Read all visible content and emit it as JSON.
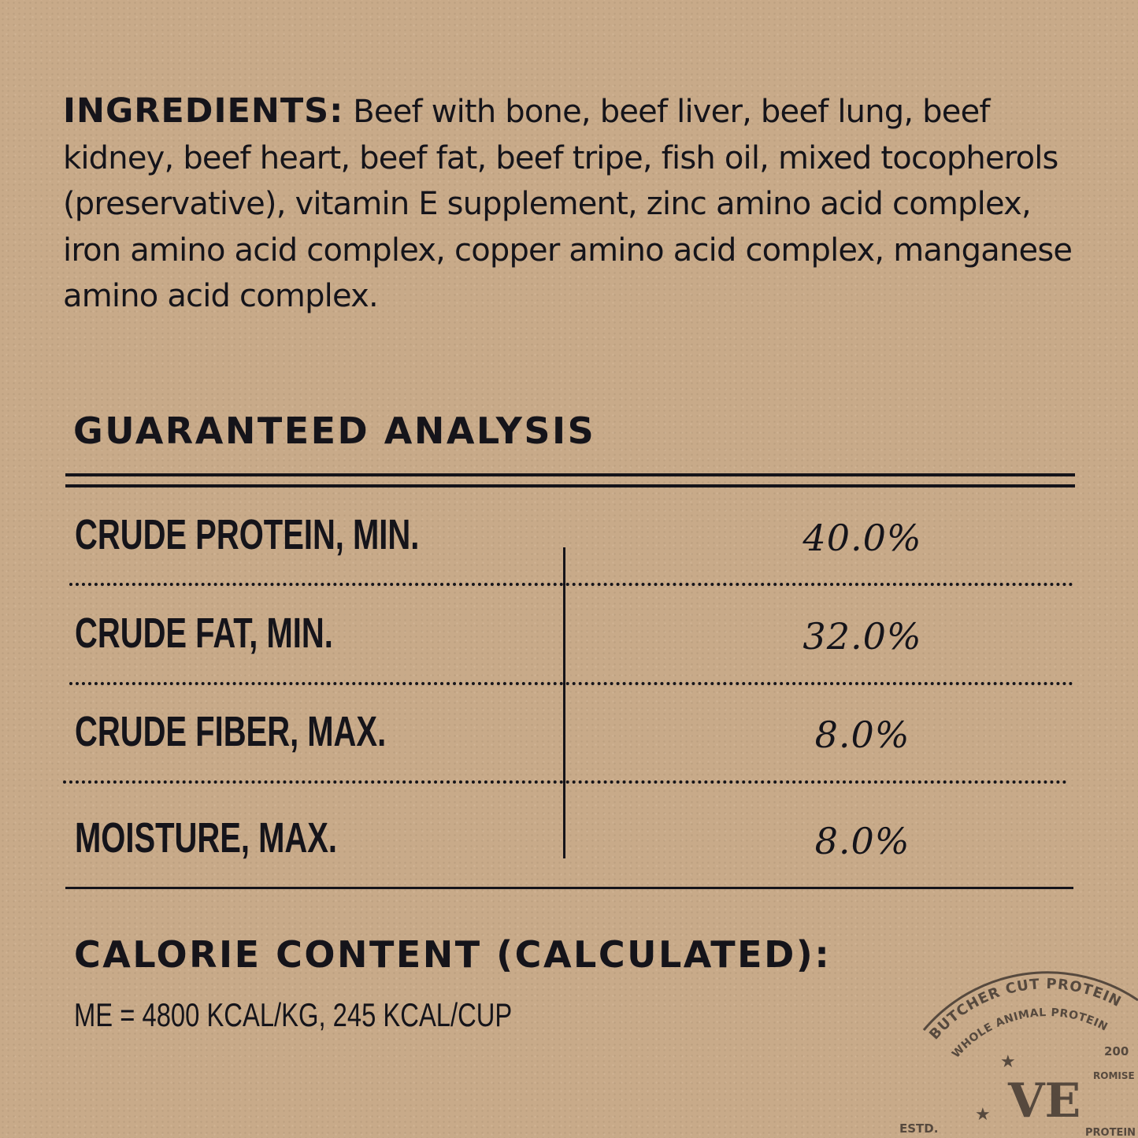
{
  "ingredients": {
    "label": "INGREDIENTS:",
    "text": "Beef with bone, beef liver, beef lung, beef kidney, beef heart, beef fat, beef tripe, fish oil, mixed tocopherols (preservative), vitamin E supplement, zinc amino acid complex, iron amino acid complex, copper amino acid complex, manganese amino acid complex."
  },
  "analysis": {
    "title": "GUARANTEED ANALYSIS",
    "rows": [
      {
        "label": "CRUDE PROTEIN, MIN.",
        "value": "40.0%"
      },
      {
        "label": "CRUDE FAT, MIN.",
        "value": "32.0%"
      },
      {
        "label": "CRUDE FIBER, MAX.",
        "value": "8.0%"
      },
      {
        "label": "MOISTURE, MAX.",
        "value": "8.0%"
      }
    ]
  },
  "calorie": {
    "title": "CALORIE CONTENT (CALCULATED):",
    "text": "ME = 4800 KCAL/KG, 245 KCAL/CUP"
  },
  "stamp": {
    "outer": "BUTCHER CUT PROTEIN",
    "inner": "WHOLE ANIMAL PROTEIN",
    "monogram": "VE",
    "estd": "ESTD.",
    "year": "200",
    "promise": "ROMISE",
    "bottom": "PROTEIN"
  },
  "colors": {
    "background": "#c8aa89",
    "ink": "#15141a",
    "stamp": "#4a3f36"
  }
}
